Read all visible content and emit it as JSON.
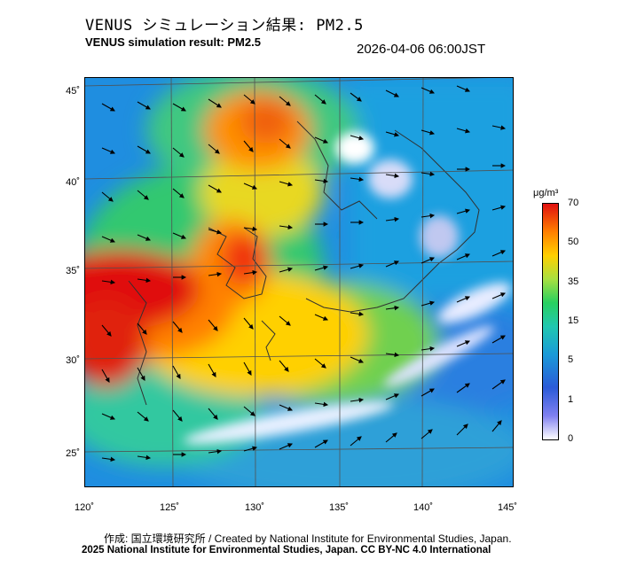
{
  "title_ja": "VENUS シミュレーション結果: PM2.5",
  "title_en": "VENUS simulation result: PM2.5",
  "timestamp": "2026-04-06 06:00JST",
  "lat_labels": [
    "45˚",
    "40˚",
    "35˚",
    "30˚",
    "25˚"
  ],
  "lon_labels": [
    "120˚",
    "125˚",
    "130˚",
    "135˚",
    "140˚",
    "145˚"
  ],
  "colorbar": {
    "unit": "μg/m³",
    "ticks": [
      "70",
      "50",
      "35",
      "15",
      "5",
      "1",
      "0"
    ]
  },
  "credit": "作成: 国立環境研究所 / Created by National Institute for Environmental Studies, Japan.",
  "copyright": "2025 National Institute for Environmental Studies, Japan. CC BY-NC 4.0 International",
  "colors": {
    "ocean": "#1f8ee0",
    "clean": "#ffffff",
    "high": "#e01010",
    "mid": "#ffd000"
  }
}
